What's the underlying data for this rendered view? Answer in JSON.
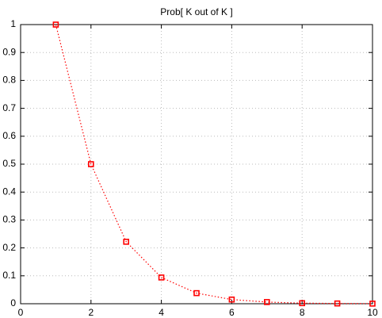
{
  "chart_data": {
    "type": "line",
    "title": "Prob[ K out of K ]",
    "x": [
      1,
      2,
      3,
      4,
      5,
      6,
      7,
      8,
      9,
      10
    ],
    "series": [
      {
        "color": "#ff0000",
        "values": [
          1,
          0.5,
          0.222,
          0.094,
          0.038,
          0.015,
          0.006,
          0.002,
          0.001,
          0.0004
        ]
      }
    ],
    "xlim": [
      0,
      10
    ],
    "xticks": [
      0,
      2,
      4,
      6,
      8,
      10
    ],
    "ylim": [
      0,
      1
    ],
    "yticks": [
      0,
      0.1,
      0.2,
      0.3,
      0.4,
      0.5,
      0.6,
      0.7,
      0.8,
      0.9,
      1
    ],
    "grid": true,
    "line_style": "dotted",
    "marker": "square"
  }
}
